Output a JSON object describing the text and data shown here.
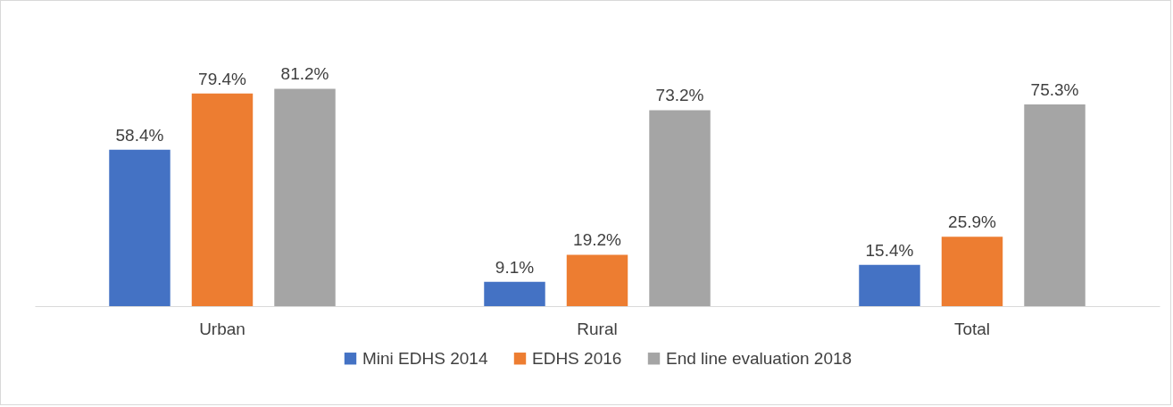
{
  "chart_data": {
    "type": "bar",
    "categories": [
      "Urban",
      "Rural",
      "Total"
    ],
    "series": [
      {
        "name": "Mini EDHS 2014",
        "color": "#4472c4",
        "values": [
          58.4,
          9.1,
          15.4
        ],
        "value_labels": [
          "58.4%",
          "9.1%",
          "15.4%"
        ]
      },
      {
        "name": "EDHS 2016",
        "color": "#ed7d31",
        "values": [
          79.4,
          19.2,
          25.9
        ],
        "value_labels": [
          "79.4%",
          "19.2%",
          "25.9%"
        ]
      },
      {
        "name": "End line evaluation 2018",
        "color": "#a5a5a5",
        "values": [
          81.2,
          73.2,
          75.3
        ],
        "value_labels": [
          "81.2%",
          "73.2%",
          "75.3%"
        ]
      }
    ],
    "legend": "bottom",
    "grid": false
  }
}
